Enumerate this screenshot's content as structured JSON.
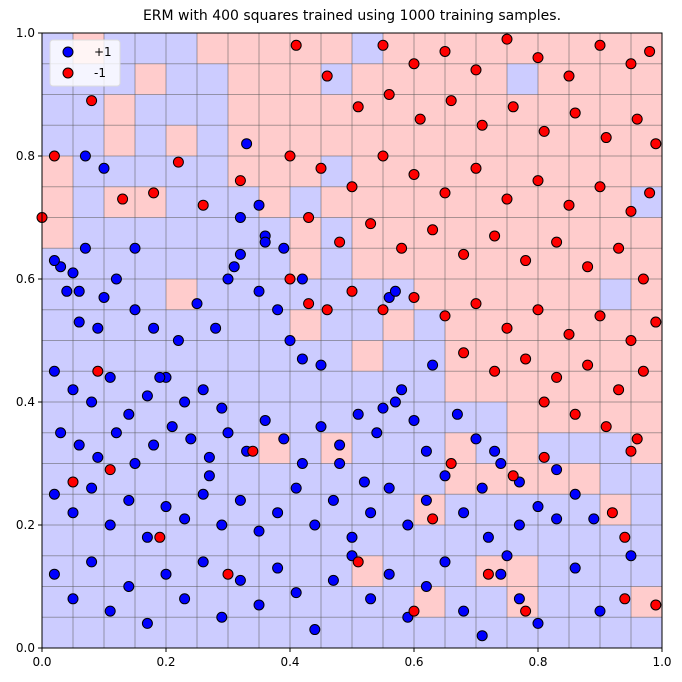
{
  "title": "ERM with 400 squares trained using 1000 training samples.",
  "colors": {
    "pos_region": "#ccccff",
    "neg_region": "#ffcccc",
    "pos_point": "#0000ff",
    "neg_point": "#ff0000",
    "grid": "#555555"
  },
  "legend": [
    {
      "label": "+1",
      "color": "#0000ff"
    },
    {
      "label": "-1",
      "color": "#ff0000"
    }
  ],
  "chart_data": {
    "type": "scatter",
    "title": "ERM with 400 squares trained using 1000 training samples.",
    "xlabel": "",
    "ylabel": "",
    "xlim": [
      0,
      1
    ],
    "ylim": [
      0,
      1
    ],
    "xticks": [
      "0.0",
      "0.2",
      "0.4",
      "0.6",
      "0.8",
      "1.0"
    ],
    "yticks": [
      "0.0",
      "0.2",
      "0.4",
      "0.6",
      "0.8",
      "1.0"
    ],
    "legend_position": "upper left",
    "grid_size": 20,
    "grid_labels_top_to_bottom": [
      "BPBBBPPPPPBPPPPPPPPP",
      "BBBPBBPPPBPPPPPBPPPP",
      "BBPBBBPPPPPPPPPPPPPP",
      "BBPBPBPPPPPPPPPPPPPP",
      "PBBBBBPPPBPPPPPPPPPP",
      "PBPPBBBPBPPPPPPPPPPB",
      "PBBBBBBBPBPPPPPPPPPP",
      "BBBBBBBBPBPPPPPPPPPP",
      "BBBBPBBBBBBBPPPPPPBP",
      "BBBBBBBBPBBPBPPPPPPP",
      "BBBBBBBBBBPBBPPPPPPP",
      "BBBBBBBBBBBBBPPPPPPP",
      "BBBBBBBBBBBBBBBPPPPP",
      "BBBBBBBPBPBBBPBPBBBP",
      "BBBBBBBBBBBBBPPPPPBB",
      "BBBBBBBBBBBBPBBBBBPB",
      "BBBBBBBBBBBBBBBBBBBB",
      "BBBBBBBBBBPBBBPPBBBB",
      "BBBBBBBBBBBBPBBPBBBP",
      "BBBBBBBBBBBBBBBBBBBB"
    ],
    "series": [
      {
        "name": "+1",
        "color": "#0000ff",
        "points": [
          [
            0.03,
            0.62
          ],
          [
            0.05,
            0.61
          ],
          [
            0.02,
            0.63
          ],
          [
            0.07,
            0.65
          ],
          [
            0.04,
            0.58
          ],
          [
            0.1,
            0.57
          ],
          [
            0.06,
            0.53
          ],
          [
            0.12,
            0.6
          ],
          [
            0.15,
            0.55
          ],
          [
            0.18,
            0.52
          ],
          [
            0.22,
            0.5
          ],
          [
            0.25,
            0.56
          ],
          [
            0.28,
            0.52
          ],
          [
            0.3,
            0.6
          ],
          [
            0.32,
            0.64
          ],
          [
            0.35,
            0.58
          ],
          [
            0.38,
            0.55
          ],
          [
            0.4,
            0.5
          ],
          [
            0.42,
            0.47
          ],
          [
            0.45,
            0.46
          ],
          [
            0.02,
            0.45
          ],
          [
            0.05,
            0.42
          ],
          [
            0.08,
            0.4
          ],
          [
            0.11,
            0.44
          ],
          [
            0.14,
            0.38
          ],
          [
            0.17,
            0.41
          ],
          [
            0.2,
            0.44
          ],
          [
            0.23,
            0.4
          ],
          [
            0.26,
            0.42
          ],
          [
            0.29,
            0.39
          ],
          [
            0.03,
            0.35
          ],
          [
            0.06,
            0.33
          ],
          [
            0.09,
            0.31
          ],
          [
            0.12,
            0.35
          ],
          [
            0.15,
            0.3
          ],
          [
            0.18,
            0.33
          ],
          [
            0.21,
            0.36
          ],
          [
            0.24,
            0.34
          ],
          [
            0.27,
            0.31
          ],
          [
            0.3,
            0.35
          ],
          [
            0.33,
            0.32
          ],
          [
            0.36,
            0.37
          ],
          [
            0.39,
            0.34
          ],
          [
            0.42,
            0.3
          ],
          [
            0.45,
            0.36
          ],
          [
            0.48,
            0.33
          ],
          [
            0.51,
            0.38
          ],
          [
            0.54,
            0.35
          ],
          [
            0.57,
            0.4
          ],
          [
            0.6,
            0.37
          ],
          [
            0.02,
            0.25
          ],
          [
            0.05,
            0.22
          ],
          [
            0.08,
            0.26
          ],
          [
            0.11,
            0.2
          ],
          [
            0.14,
            0.24
          ],
          [
            0.17,
            0.18
          ],
          [
            0.2,
            0.23
          ],
          [
            0.23,
            0.21
          ],
          [
            0.26,
            0.25
          ],
          [
            0.29,
            0.2
          ],
          [
            0.32,
            0.24
          ],
          [
            0.35,
            0.19
          ],
          [
            0.38,
            0.22
          ],
          [
            0.41,
            0.26
          ],
          [
            0.44,
            0.2
          ],
          [
            0.47,
            0.24
          ],
          [
            0.5,
            0.18
          ],
          [
            0.53,
            0.22
          ],
          [
            0.56,
            0.26
          ],
          [
            0.59,
            0.2
          ],
          [
            0.62,
            0.24
          ],
          [
            0.65,
            0.28
          ],
          [
            0.68,
            0.22
          ],
          [
            0.71,
            0.26
          ],
          [
            0.74,
            0.3
          ],
          [
            0.77,
            0.27
          ],
          [
            0.8,
            0.23
          ],
          [
            0.83,
            0.29
          ],
          [
            0.86,
            0.25
          ],
          [
            0.89,
            0.21
          ],
          [
            0.02,
            0.12
          ],
          [
            0.05,
            0.08
          ],
          [
            0.08,
            0.14
          ],
          [
            0.11,
            0.06
          ],
          [
            0.14,
            0.1
          ],
          [
            0.17,
            0.04
          ],
          [
            0.2,
            0.12
          ],
          [
            0.23,
            0.08
          ],
          [
            0.26,
            0.14
          ],
          [
            0.29,
            0.05
          ],
          [
            0.32,
            0.11
          ],
          [
            0.35,
            0.07
          ],
          [
            0.38,
            0.13
          ],
          [
            0.41,
            0.09
          ],
          [
            0.44,
            0.03
          ],
          [
            0.47,
            0.11
          ],
          [
            0.5,
            0.15
          ],
          [
            0.53,
            0.08
          ],
          [
            0.56,
            0.12
          ],
          [
            0.59,
            0.05
          ],
          [
            0.62,
            0.1
          ],
          [
            0.65,
            0.14
          ],
          [
            0.68,
            0.06
          ],
          [
            0.71,
            0.02
          ],
          [
            0.74,
            0.12
          ],
          [
            0.77,
            0.08
          ],
          [
            0.8,
            0.04
          ],
          [
            0.86,
            0.13
          ],
          [
            0.9,
            0.06
          ],
          [
            0.95,
            0.15
          ],
          [
            0.06,
            0.58
          ],
          [
            0.09,
            0.52
          ],
          [
            0.33,
            0.82
          ],
          [
            0.32,
            0.7
          ],
          [
            0.35,
            0.72
          ],
          [
            0.36,
            0.67
          ],
          [
            0.39,
            0.65
          ],
          [
            0.31,
            0.62
          ],
          [
            0.56,
            0.57
          ],
          [
            0.57,
            0.58
          ],
          [
            0.55,
            0.39
          ],
          [
            0.58,
            0.42
          ],
          [
            0.63,
            0.46
          ],
          [
            0.67,
            0.38
          ],
          [
            0.7,
            0.34
          ],
          [
            0.73,
            0.32
          ],
          [
            0.72,
            0.18
          ],
          [
            0.75,
            0.15
          ],
          [
            0.77,
            0.2
          ],
          [
            0.83,
            0.21
          ],
          [
            0.1,
            0.78
          ],
          [
            0.07,
            0.8
          ],
          [
            0.15,
            0.65
          ],
          [
            0.36,
            0.66
          ],
          [
            0.42,
            0.6
          ],
          [
            0.19,
            0.44
          ],
          [
            0.27,
            0.28
          ],
          [
            0.48,
            0.3
          ],
          [
            0.52,
            0.27
          ],
          [
            0.62,
            0.32
          ]
        ]
      },
      {
        "name": "-1",
        "color": "#ff0000",
        "points": [
          [
            0.55,
            0.98
          ],
          [
            0.6,
            0.95
          ],
          [
            0.65,
            0.97
          ],
          [
            0.7,
            0.94
          ],
          [
            0.75,
            0.99
          ],
          [
            0.8,
            0.96
          ],
          [
            0.85,
            0.93
          ],
          [
            0.9,
            0.98
          ],
          [
            0.95,
            0.95
          ],
          [
            0.98,
            0.97
          ],
          [
            0.41,
            0.98
          ],
          [
            0.46,
            0.93
          ],
          [
            0.51,
            0.88
          ],
          [
            0.56,
            0.9
          ],
          [
            0.61,
            0.86
          ],
          [
            0.66,
            0.89
          ],
          [
            0.71,
            0.85
          ],
          [
            0.76,
            0.88
          ],
          [
            0.81,
            0.84
          ],
          [
            0.86,
            0.87
          ],
          [
            0.91,
            0.83
          ],
          [
            0.96,
            0.86
          ],
          [
            0.99,
            0.82
          ],
          [
            0.4,
            0.8
          ],
          [
            0.45,
            0.78
          ],
          [
            0.5,
            0.75
          ],
          [
            0.55,
            0.8
          ],
          [
            0.6,
            0.77
          ],
          [
            0.65,
            0.74
          ],
          [
            0.7,
            0.78
          ],
          [
            0.75,
            0.73
          ],
          [
            0.8,
            0.76
          ],
          [
            0.85,
            0.72
          ],
          [
            0.9,
            0.75
          ],
          [
            0.95,
            0.71
          ],
          [
            0.98,
            0.74
          ],
          [
            0.43,
            0.7
          ],
          [
            0.48,
            0.66
          ],
          [
            0.53,
            0.69
          ],
          [
            0.58,
            0.65
          ],
          [
            0.63,
            0.68
          ],
          [
            0.68,
            0.64
          ],
          [
            0.73,
            0.67
          ],
          [
            0.78,
            0.63
          ],
          [
            0.83,
            0.66
          ],
          [
            0.88,
            0.62
          ],
          [
            0.93,
            0.65
          ],
          [
            0.97,
            0.6
          ],
          [
            0.5,
            0.58
          ],
          [
            0.55,
            0.55
          ],
          [
            0.6,
            0.57
          ],
          [
            0.65,
            0.54
          ],
          [
            0.7,
            0.56
          ],
          [
            0.75,
            0.52
          ],
          [
            0.8,
            0.55
          ],
          [
            0.85,
            0.51
          ],
          [
            0.9,
            0.54
          ],
          [
            0.95,
            0.5
          ],
          [
            0.99,
            0.53
          ],
          [
            0.68,
            0.48
          ],
          [
            0.73,
            0.45
          ],
          [
            0.78,
            0.47
          ],
          [
            0.83,
            0.44
          ],
          [
            0.88,
            0.46
          ],
          [
            0.93,
            0.42
          ],
          [
            0.97,
            0.45
          ],
          [
            0.81,
            0.4
          ],
          [
            0.86,
            0.38
          ],
          [
            0.91,
            0.36
          ],
          [
            0.96,
            0.34
          ],
          [
            0.0,
            0.7
          ],
          [
            0.02,
            0.8
          ],
          [
            0.08,
            0.89
          ],
          [
            0.13,
            0.73
          ],
          [
            0.18,
            0.74
          ],
          [
            0.22,
            0.79
          ],
          [
            0.26,
            0.72
          ],
          [
            0.32,
            0.76
          ],
          [
            0.4,
            0.6
          ],
          [
            0.43,
            0.56
          ],
          [
            0.09,
            0.45
          ],
          [
            0.11,
            0.29
          ],
          [
            0.34,
            0.32
          ],
          [
            0.51,
            0.14
          ],
          [
            0.6,
            0.06
          ],
          [
            0.63,
            0.21
          ],
          [
            0.72,
            0.12
          ],
          [
            0.78,
            0.06
          ],
          [
            0.94,
            0.08
          ],
          [
            0.99,
            0.07
          ],
          [
            0.95,
            0.32
          ],
          [
            0.94,
            0.18
          ],
          [
            0.92,
            0.22
          ],
          [
            0.76,
            0.28
          ],
          [
            0.81,
            0.31
          ],
          [
            0.66,
            0.3
          ],
          [
            0.05,
            0.27
          ],
          [
            0.19,
            0.18
          ],
          [
            0.3,
            0.12
          ],
          [
            0.46,
            0.55
          ]
        ]
      }
    ]
  }
}
